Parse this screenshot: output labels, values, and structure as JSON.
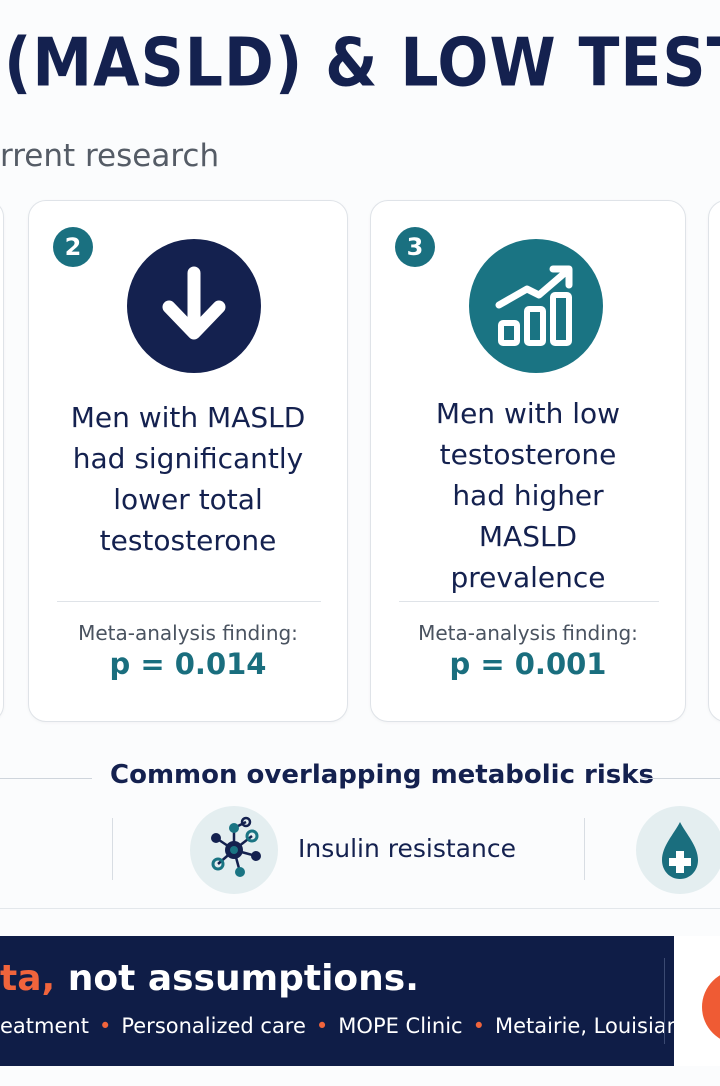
{
  "header": {
    "title": "(MASLD) & LOW TESTOSTER",
    "subtitle": "rrent research"
  },
  "cards": [
    {
      "number": "2",
      "icon": "arrow-down-icon",
      "finding_lines": [
        "Men with MASLD",
        "had significantly",
        "lower total",
        "testosterone"
      ],
      "meta_label": "Meta-analysis finding:",
      "p_value": "p = 0.014"
    },
    {
      "number": "3",
      "icon": "trending-up-bar-chart-icon",
      "finding_lines": [
        "Men with low",
        "testosterone",
        "had higher",
        "MASLD",
        "prevalence"
      ],
      "meta_label": "Meta-analysis finding:",
      "p_value": "p = 0.001"
    }
  ],
  "risks": {
    "heading": "Common overlapping metabolic risks",
    "items": [
      {
        "icon": "insulin-network-icon",
        "label": "Insulin resistance"
      },
      {
        "icon": "blood-drop-plus-icon",
        "label": ""
      }
    ]
  },
  "footer": {
    "tagline_accent": "ta,",
    "tagline_rest": " not assumptions.",
    "details": [
      "eatment",
      "Personalized care",
      "MOPE Clinic",
      "Metairie, Louisiana"
    ]
  },
  "colors": {
    "navy": "#14214f",
    "teal": "#1a7080",
    "orange": "#f0643c"
  }
}
